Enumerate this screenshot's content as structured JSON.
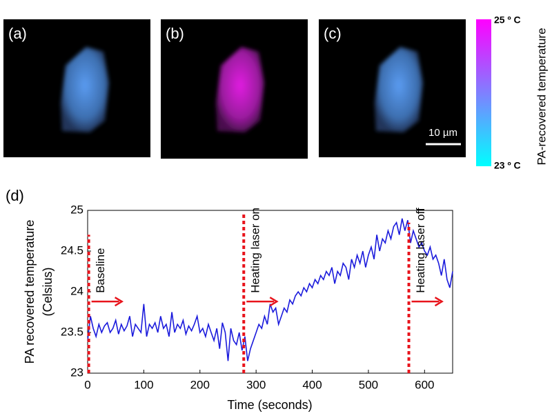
{
  "panels": [
    {
      "label": "(a)"
    },
    {
      "label": "(b)"
    },
    {
      "label": "(c)"
    }
  ],
  "scale_bar": "10 µm",
  "colorbar": {
    "title": "PA-recovered temperature",
    "top_label": "25 º C",
    "bottom_label": "23 º C"
  },
  "chart_data": {
    "type": "line",
    "panel_label": "(d)",
    "x_label": "Time (seconds)",
    "y_label": [
      "PA recovered temperature",
      "(Celsius)"
    ],
    "xlim": [
      0,
      650
    ],
    "ylim": [
      23,
      25
    ],
    "xticks": [
      0,
      100,
      200,
      300,
      400,
      500,
      600
    ],
    "yticks": [
      23,
      23.5,
      24,
      24.5,
      25
    ],
    "x": [
      0,
      5,
      10,
      15,
      20,
      25,
      30,
      35,
      40,
      45,
      50,
      55,
      60,
      65,
      70,
      75,
      80,
      85,
      90,
      95,
      100,
      105,
      110,
      115,
      120,
      125,
      130,
      135,
      140,
      145,
      150,
      155,
      160,
      165,
      170,
      175,
      180,
      185,
      190,
      195,
      200,
      205,
      210,
      215,
      220,
      225,
      230,
      235,
      240,
      245,
      250,
      255,
      260,
      265,
      270,
      275,
      280,
      285,
      290,
      295,
      300,
      305,
      310,
      315,
      320,
      325,
      330,
      335,
      340,
      345,
      350,
      355,
      360,
      365,
      370,
      375,
      380,
      385,
      390,
      395,
      400,
      405,
      410,
      415,
      420,
      425,
      430,
      435,
      440,
      445,
      450,
      455,
      460,
      465,
      470,
      475,
      480,
      485,
      490,
      495,
      500,
      505,
      510,
      515,
      520,
      525,
      530,
      535,
      540,
      545,
      550,
      555,
      560,
      565,
      570,
      575,
      580,
      585,
      590,
      595,
      600,
      605,
      610,
      615,
      620,
      625,
      630,
      635,
      640,
      645,
      650
    ],
    "series": [
      {
        "color": "#1a1adc",
        "values": [
          23.4,
          23.7,
          23.55,
          23.45,
          23.6,
          23.5,
          23.58,
          23.62,
          23.5,
          23.55,
          23.65,
          23.48,
          23.6,
          23.52,
          23.58,
          23.7,
          23.45,
          23.6,
          23.55,
          23.5,
          23.85,
          23.45,
          23.6,
          23.55,
          23.62,
          23.5,
          23.7,
          23.55,
          23.6,
          23.45,
          23.75,
          23.5,
          23.6,
          23.55,
          23.65,
          23.48,
          23.58,
          23.52,
          23.6,
          23.7,
          23.5,
          23.55,
          23.45,
          23.6,
          23.5,
          23.4,
          23.55,
          23.3,
          23.62,
          23.5,
          23.15,
          23.55,
          23.4,
          23.35,
          23.5,
          23.28,
          23.45,
          23.15,
          23.3,
          23.4,
          23.5,
          23.6,
          23.55,
          23.7,
          23.6,
          23.85,
          23.75,
          23.8,
          23.6,
          23.7,
          23.8,
          23.75,
          23.9,
          23.85,
          23.95,
          24.0,
          23.95,
          24.05,
          24.0,
          24.1,
          24.05,
          24.15,
          24.1,
          24.2,
          24.15,
          24.25,
          24.2,
          24.3,
          24.1,
          24.25,
          24.2,
          24.35,
          24.3,
          24.15,
          24.4,
          24.3,
          24.45,
          24.35,
          24.5,
          24.3,
          24.45,
          24.55,
          24.4,
          24.7,
          24.5,
          24.65,
          24.6,
          24.75,
          24.65,
          24.8,
          24.85,
          24.7,
          24.9,
          24.75,
          24.88,
          24.6,
          24.75,
          24.65,
          24.55,
          24.6,
          24.5,
          24.45,
          24.55,
          24.4,
          24.45,
          24.35,
          24.2,
          24.4,
          24.15,
          24.05,
          24.25
        ]
      }
    ],
    "markers": [
      {
        "x": 2,
        "y_top": 24.7,
        "label": "Baseline"
      },
      {
        "x": 278,
        "y_top": 24.95,
        "label": "Heating laser on"
      },
      {
        "x": 572,
        "y_top": 24.85,
        "label": "Heating laser off"
      }
    ],
    "marker_color": "#e8141c"
  }
}
